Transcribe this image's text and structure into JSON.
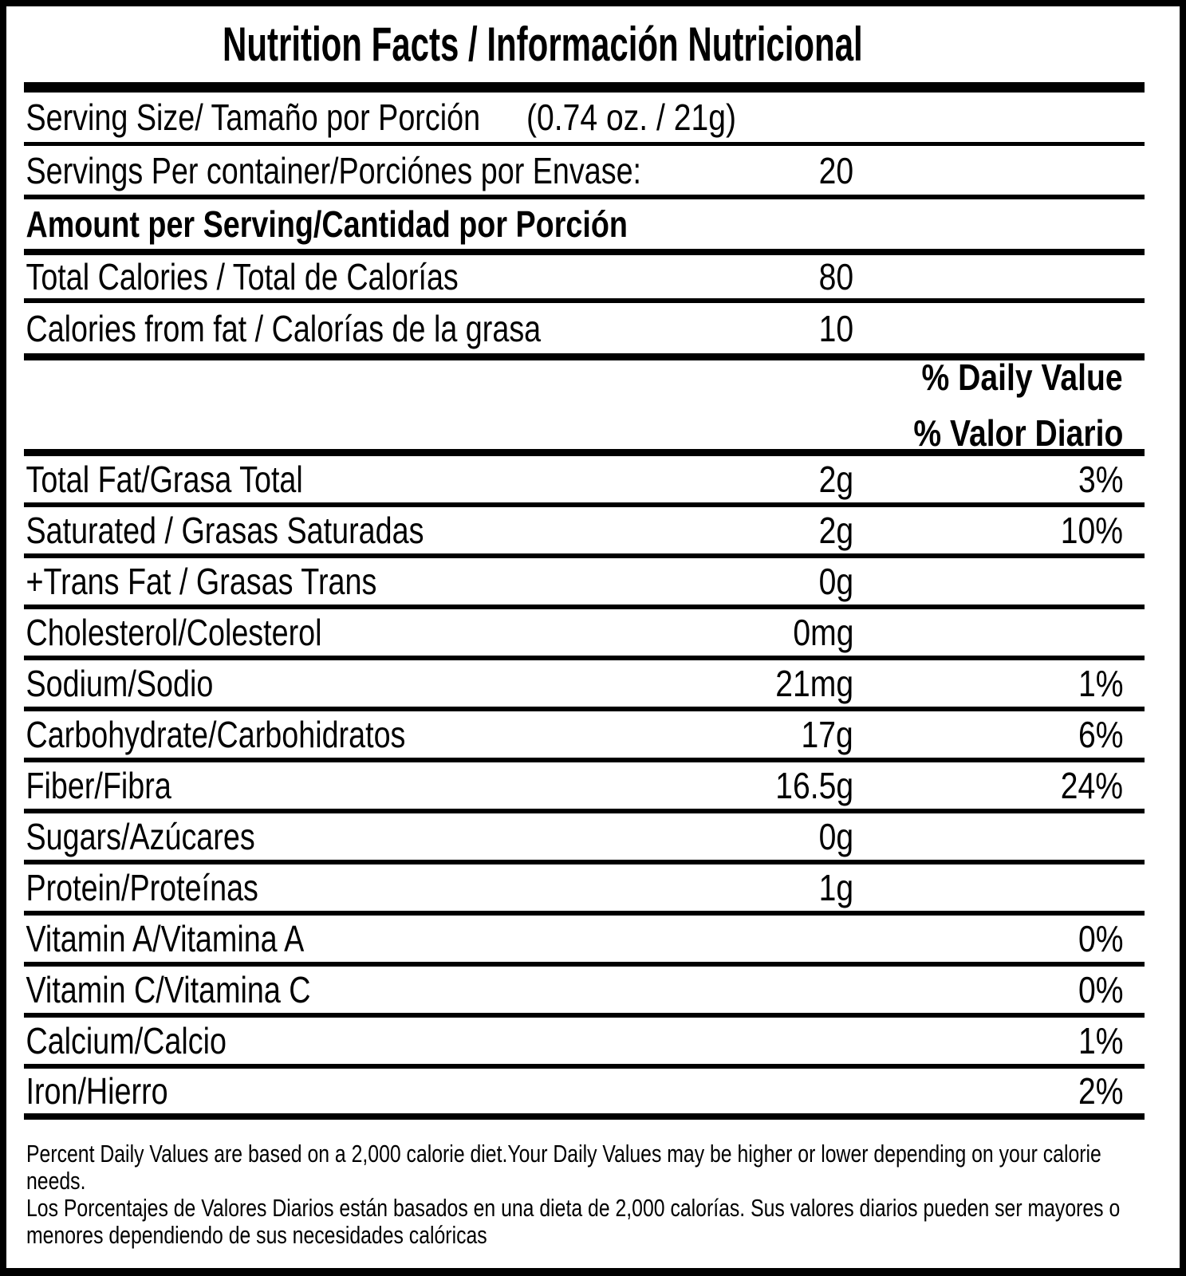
{
  "label": {
    "title": "Nutrition Facts / Información Nutricional",
    "serving_size": {
      "label": "Serving Size/ Tamaño por Porción",
      "value": "(0.74 oz. / 21g)"
    },
    "servings_per_container": {
      "label": "Servings Per container/Porciónes por Envase:",
      "value": "20"
    },
    "amount_per_serving_heading": "Amount per Serving/Cantidad por Porción",
    "calories_rows": [
      {
        "label": "Total Calories / Total de Calorías",
        "value": "80"
      },
      {
        "label": "Calories from fat / Calorías de la grasa",
        "value": "10"
      }
    ],
    "daily_value_header": {
      "line1": "% Daily Value",
      "line2": "% Valor Diario"
    },
    "nutrients": [
      {
        "label": "Total Fat/Grasa Total",
        "amount": "2g",
        "dv": "3%"
      },
      {
        "label": "Saturated / Grasas Saturadas",
        "amount": "2g",
        "dv": "10%"
      },
      {
        "label": "+Trans Fat / Grasas Trans",
        "amount": "0g",
        "dv": ""
      },
      {
        "label": "Cholesterol/Colesterol",
        "amount": "0mg",
        "dv": ""
      },
      {
        "label": "Sodium/Sodio",
        "amount": "21mg",
        "dv": "1%"
      },
      {
        "label": "Carbohydrate/Carbohidratos",
        "amount": "17g",
        "dv": "6%"
      },
      {
        "label": "Fiber/Fibra",
        "amount": "16.5g",
        "dv": "24%"
      },
      {
        "label": "Sugars/Azúcares",
        "amount": "0g",
        "dv": ""
      },
      {
        "label": "Protein/Proteínas",
        "amount": "1g",
        "dv": ""
      },
      {
        "label": "Vitamin A/Vitamina A",
        "amount": "",
        "dv": "0%"
      },
      {
        "label": "Vitamin C/Vitamina C",
        "amount": "",
        "dv": "0%"
      },
      {
        "label": "Calcium/Calcio",
        "amount": "",
        "dv": "1%"
      },
      {
        "label": "Iron/Hierro",
        "amount": "",
        "dv": "2%"
      }
    ],
    "footnote_en": "Percent Daily Values are based on a 2,000 calorie diet.Your Daily Values may be higher or lower depending on your calorie needs.",
    "footnote_es": "Los Porcentajes de Valores Diarios están basados en una dieta de 2,000 calorías. Sus valores diarios pueden ser mayores o menores dependiendo de sus necesidades calóricas"
  },
  "colors": {
    "text": "#000000",
    "background": "#ffffff",
    "rule": "#000000"
  }
}
